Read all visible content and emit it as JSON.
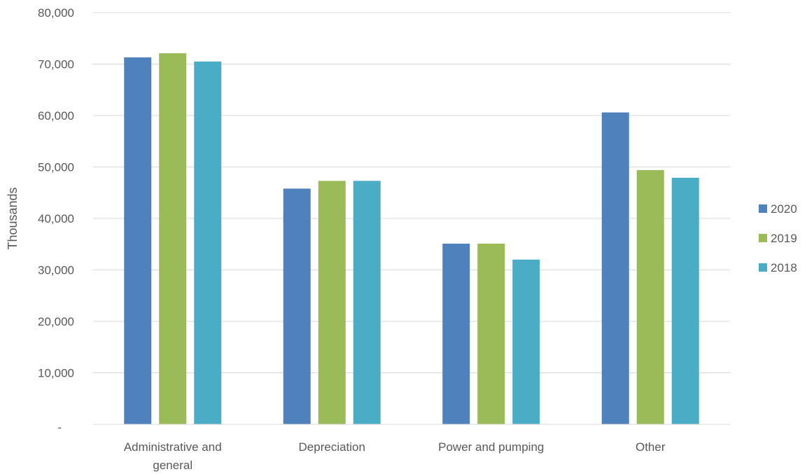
{
  "chart_data": {
    "type": "bar",
    "title": "",
    "xlabel": "",
    "ylabel": "Thousands",
    "categories": [
      [
        "Administrative and",
        "general"
      ],
      [
        "Depreciation"
      ],
      [
        "Power and pumping"
      ],
      [
        "Other"
      ]
    ],
    "series": [
      {
        "name": "2020",
        "color": "#4f81bd",
        "values": [
          71300,
          45800,
          35100,
          60600
        ]
      },
      {
        "name": "2019",
        "color": "#9bbb59",
        "values": [
          72100,
          47300,
          35100,
          49400
        ]
      },
      {
        "name": "2018",
        "color": "#4bacc6",
        "values": [
          70500,
          47300,
          32000,
          47900
        ]
      }
    ],
    "ylim": [
      0,
      80000
    ],
    "y_ticks": [
      {
        "value": 0,
        "label": "-"
      },
      {
        "value": 10000,
        "label": "10,000"
      },
      {
        "value": 20000,
        "label": "20,000"
      },
      {
        "value": 30000,
        "label": "30,000"
      },
      {
        "value": 40000,
        "label": "40,000"
      },
      {
        "value": 50000,
        "label": "50,000"
      },
      {
        "value": 60000,
        "label": "60,000"
      },
      {
        "value": 70000,
        "label": "70,000"
      },
      {
        "value": 80000,
        "label": "80,000"
      }
    ],
    "grid": true,
    "legend_position": "right"
  }
}
